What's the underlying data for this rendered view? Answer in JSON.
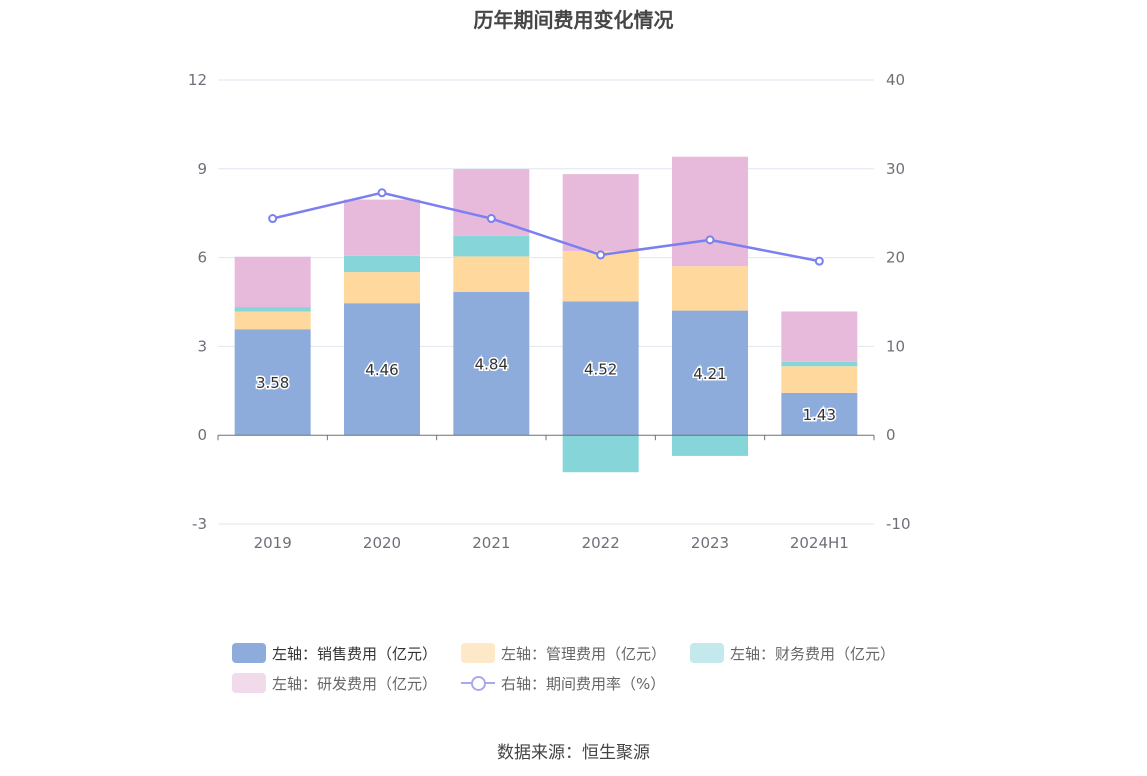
{
  "title": "历年期间费用变化情况",
  "source": "数据来源：恒生聚源",
  "colors": {
    "sales": "#8eacdb",
    "admin": "#fed89c",
    "finance": "#86d5d8",
    "rnd": "#e7badb",
    "rate": "#7b7ff0",
    "legend_sales": "#8eacdb",
    "legend_admin": "#fde9c8",
    "legend_finance": "#c4e9ec",
    "legend_rnd": "#f1daea"
  },
  "legend": {
    "sales": "左轴：销售费用（亿元）",
    "admin": "左轴：管理费用（亿元）",
    "finance": "左轴：财务费用（亿元）",
    "rnd": "左轴：研发费用（亿元）",
    "rate": "右轴：期间费用率（%）"
  },
  "chart_data": {
    "type": "bar",
    "stacked": true,
    "title": "历年期间费用变化情况",
    "categories": [
      "2019",
      "2020",
      "2021",
      "2022",
      "2023",
      "2024H1"
    ],
    "left_axis": {
      "min": -3,
      "max": 12,
      "ticks": [
        "-3",
        "0",
        "3",
        "6",
        "9",
        "12"
      ]
    },
    "right_axis": {
      "min": -10,
      "max": 40,
      "ticks": [
        "-10",
        "0",
        "10",
        "20",
        "30",
        "40"
      ]
    },
    "series": [
      {
        "name": "左轴：销售费用（亿元）",
        "axis": "left",
        "type": "bar",
        "values": [
          3.58,
          4.46,
          4.84,
          4.52,
          4.21,
          1.43
        ],
        "labels": [
          "3.58",
          "4.46",
          "4.84",
          "4.52",
          "4.21",
          "1.43"
        ]
      },
      {
        "name": "左轴：管理费用（亿元）",
        "axis": "left",
        "type": "bar",
        "values": [
          0.6,
          1.05,
          1.2,
          1.7,
          1.5,
          0.9
        ]
      },
      {
        "name": "左轴：财务费用（亿元）",
        "axis": "left",
        "type": "bar",
        "values": [
          0.15,
          0.55,
          0.7,
          -1.25,
          -0.7,
          0.15
        ]
      },
      {
        "name": "左轴：研发费用（亿元）",
        "axis": "left",
        "type": "bar",
        "values": [
          1.7,
          1.9,
          2.25,
          2.6,
          3.7,
          1.7
        ]
      },
      {
        "name": "右轴：期间费用率（%）",
        "axis": "right",
        "type": "line",
        "values": [
          24.4,
          27.3,
          24.4,
          20.3,
          22.0,
          19.6
        ]
      }
    ],
    "grid": true,
    "legend_position": "bottom"
  }
}
